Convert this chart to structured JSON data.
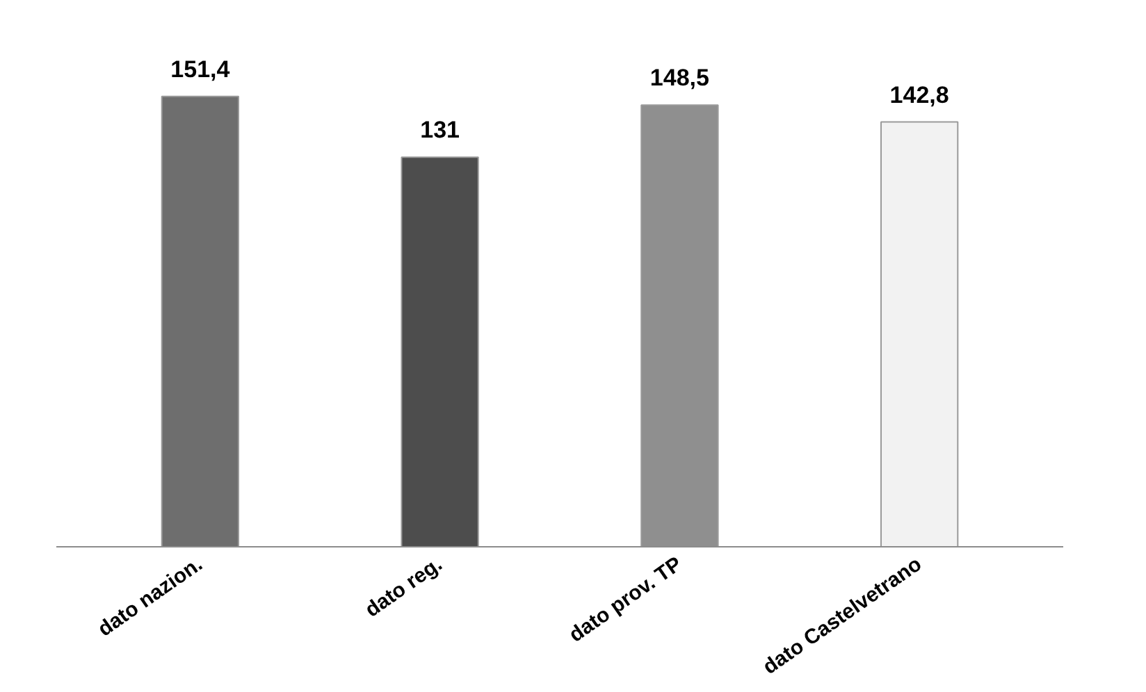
{
  "chart_data": {
    "type": "bar",
    "categories": [
      "dato nazion.",
      "dato reg.",
      "dato prov. TP",
      "dato Castelvetrano"
    ],
    "values": [
      151.4,
      131,
      148.5,
      142.8
    ],
    "colors": [
      "#6e6e6e",
      "#4d4d4d",
      "#8f8f8f",
      "#f2f2f2"
    ],
    "value_labels": [
      "151,4",
      "131",
      "148,5",
      "142,8"
    ],
    "tick_labels": "x",
    "grid": false
  }
}
